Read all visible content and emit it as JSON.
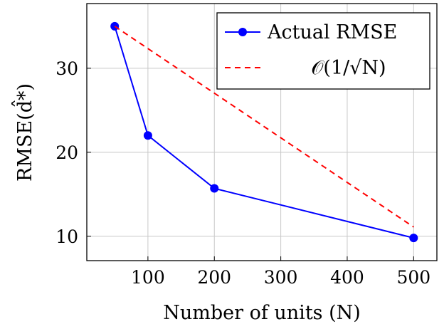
{
  "chart_data": {
    "type": "line",
    "title": "",
    "xlabel": "Number of units (N)",
    "ylabel": "RMSE(d̂*)",
    "xlim": [
      8,
      535
    ],
    "ylim": [
      7.1,
      37.7
    ],
    "xticks": [
      100,
      200,
      300,
      400,
      500
    ],
    "yticks": [
      10,
      20,
      30
    ],
    "grid": true,
    "legend_position": "top-right",
    "series": [
      {
        "name": "Actual RMSE",
        "x": [
          50,
          100,
          200,
          500
        ],
        "y": [
          35,
          22,
          15.7,
          9.8
        ],
        "color": "#0000ff",
        "style": "solid",
        "marker": "circle"
      },
      {
        "name": "𝒪(1/√N)",
        "x": [
          50,
          500
        ],
        "y": [
          35,
          11.1
        ],
        "color": "#ff0000",
        "style": "dashed",
        "marker": "none"
      }
    ]
  }
}
